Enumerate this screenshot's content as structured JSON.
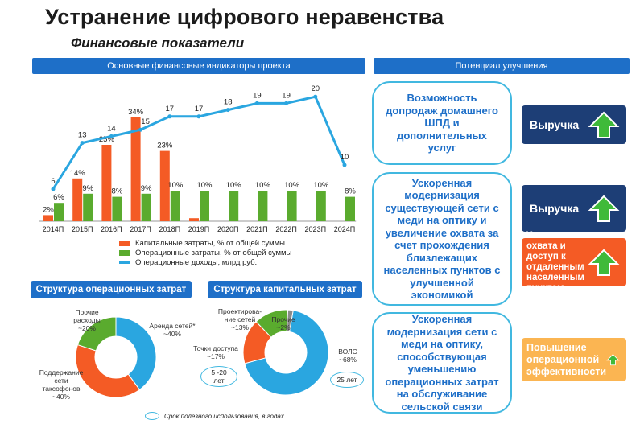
{
  "title": "Устранение цифрового неравенства",
  "subtitle": "Финансовые показатели",
  "headers": {
    "main": "Основные финансовые индикаторы проекта",
    "potential": "Потенциал улучшения",
    "opex": "Структура операционных затрат",
    "capex": "Структура капитальных затрат"
  },
  "bubbles": [
    "Возможность допродаж домашнего ШПД и дополнительных услуг",
    "Ускоренная модернизация существующей сети с меди на оптику и увеличение охвата за счет прохождения близлежащих населенных пунктов с улучшенной экономикой",
    "Ускоренная модернизация сети с меди на оптику, способствующая уменьшению операционных затрат на обслуживание сельской связи"
  ],
  "side_boxes": [
    {
      "label": "Выручка",
      "icon": "up-arrow-icon"
    },
    {
      "label": "Выручка",
      "icon": "up-arrow-icon"
    },
    {
      "label": "Увеличение охвата и доступ к отдаленным населенным пунктам",
      "icon": "up-arrow-icon"
    },
    {
      "label": "Повышение операционной эффективности",
      "icon": "up-arrow-icon"
    }
  ],
  "chart_data": [
    {
      "type": "bar",
      "categories": [
        "2014П",
        "2015П",
        "2016П",
        "2017П",
        "2018П",
        "2019П",
        "2020П",
        "2021П",
        "2022П",
        "2023П",
        "2024П"
      ],
      "series": [
        {
          "name": "Капитальные затраты, % от общей суммы",
          "type": "bar",
          "values": [
            2,
            14,
            25,
            34,
            23,
            1,
            null,
            null,
            null,
            null,
            null
          ],
          "labels": [
            "2%",
            "14%",
            "25%",
            "34%",
            "23%",
            "",
            "",
            "",
            "",
            "",
            ""
          ],
          "color": "#f45b25"
        },
        {
          "name": "Операционные затраты, % от общей суммы",
          "type": "bar",
          "values": [
            6,
            9,
            8,
            9,
            10,
            10,
            10,
            10,
            10,
            10,
            8
          ],
          "labels": [
            "6%",
            "9%",
            "8%",
            "9%",
            "10%",
            "10%",
            "10%",
            "10%",
            "10%",
            "10%",
            "8%"
          ],
          "color": "#5aab2e"
        },
        {
          "name": "Операционные доходы, млрд руб.",
          "type": "line",
          "values": [
            6,
            13,
            14,
            15,
            17,
            17,
            18,
            19,
            19,
            20,
            10
          ],
          "labels": [
            "6",
            "13",
            "14",
            "15",
            "17",
            "17",
            "18",
            "19",
            "19",
            "20",
            "10"
          ],
          "color": "#2aa6e0"
        }
      ]
    },
    {
      "type": "pie",
      "title": "Структура операционных затрат",
      "labels": [
        "Аренда сетей*\n~40%",
        "Поддержание сети таксофонов\n~40%",
        "Прочие расходы\n~20%"
      ],
      "values": [
        40,
        40,
        20
      ],
      "colors": [
        "#2aa6e0",
        "#f45b25",
        "#5aab2e"
      ]
    },
    {
      "type": "pie",
      "title": "Структура капитальных затрат",
      "labels": [
        "ВОЛС\n~68%",
        "Точки доступа\n~17%",
        "Проектирова-\nние сетей\n~13%",
        "Прочие\n~2%"
      ],
      "values": [
        68,
        17,
        13,
        2
      ],
      "colors": [
        "#2aa6e0",
        "#f45b25",
        "#5aab2e",
        "#8a8a8a"
      ],
      "notes": [
        "5 -20\nлет",
        "25 лет"
      ]
    }
  ],
  "footer": {
    "lifetime_label": "Срок полезного использования, в годах"
  }
}
